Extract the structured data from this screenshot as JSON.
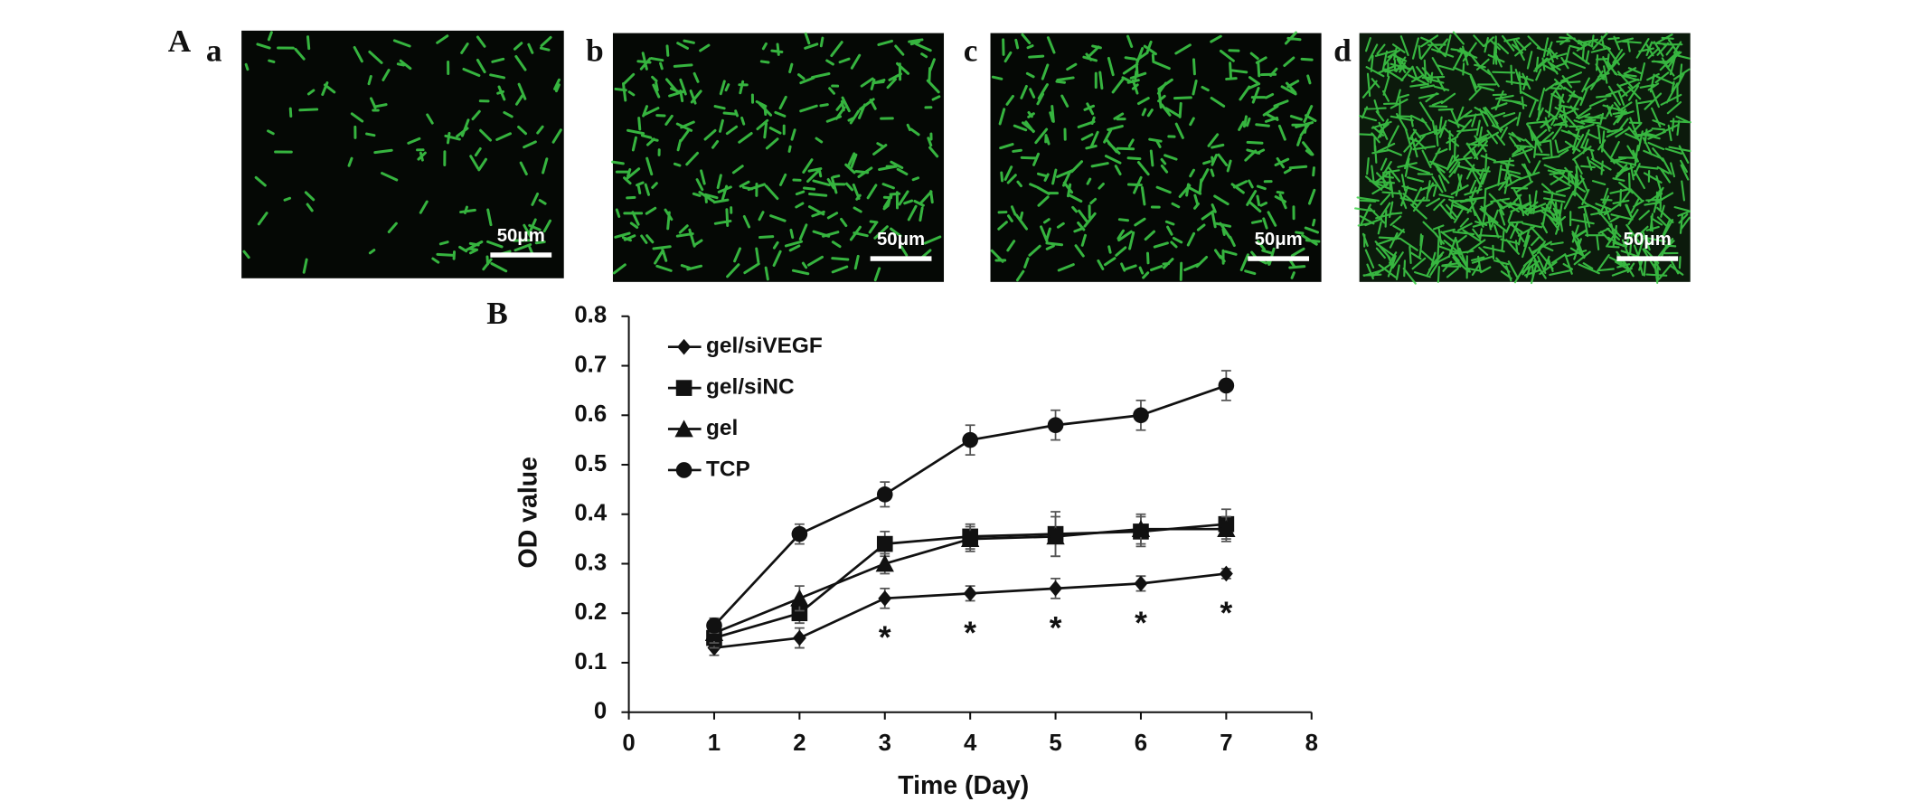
{
  "figure_label_A": "A",
  "images": [
    {
      "label": "a",
      "scale_bar": "50μm"
    },
    {
      "label": "b",
      "scale_bar": "50μm"
    },
    {
      "label": "c",
      "scale_bar": "50μm"
    },
    {
      "label": "d",
      "scale_bar": "50μm"
    }
  ],
  "figure_label_B": "B",
  "chart_data": {
    "type": "line",
    "x_label": "Time (Day)",
    "y_label": "OD value",
    "xlim": [
      0,
      8
    ],
    "xticks": [
      0,
      1,
      2,
      3,
      4,
      5,
      6,
      7,
      8
    ],
    "ylim": [
      0,
      0.8
    ],
    "yticks": [
      0,
      0.1,
      0.2,
      0.3,
      0.4,
      0.5,
      0.6,
      0.7,
      0.8
    ],
    "x": [
      1,
      2,
      3,
      4,
      5,
      6,
      7
    ],
    "legend": "upper left",
    "series": [
      {
        "name": "gel/siVEGF",
        "color": "#111111",
        "marker": "diamond",
        "values": [
          0.13,
          0.15,
          0.23,
          0.24,
          0.25,
          0.26,
          0.28
        ],
        "errors": [
          0.015,
          0.02,
          0.02,
          0.015,
          0.02,
          0.015,
          0.01
        ]
      },
      {
        "name": "gel/siNC",
        "color": "#111111",
        "marker": "square",
        "values": [
          0.15,
          0.2,
          0.34,
          0.355,
          0.36,
          0.365,
          0.38
        ],
        "errors": [
          0.02,
          0.02,
          0.025,
          0.025,
          0.045,
          0.03,
          0.03
        ]
      },
      {
        "name": "gel",
        "color": "#111111",
        "marker": "triangle",
        "values": [
          0.16,
          0.23,
          0.3,
          0.35,
          0.355,
          0.37,
          0.37
        ],
        "errors": [
          0.02,
          0.025,
          0.02,
          0.025,
          0.04,
          0.03,
          0.025
        ]
      },
      {
        "name": "TCP",
        "color": "#111111",
        "marker": "circle",
        "values": [
          0.175,
          0.36,
          0.44,
          0.55,
          0.58,
          0.6,
          0.66
        ],
        "errors": [
          0.015,
          0.02,
          0.025,
          0.03,
          0.03,
          0.03,
          0.03
        ]
      }
    ],
    "annotations": [
      {
        "text": "*",
        "x": 3
      },
      {
        "text": "*",
        "x": 4
      },
      {
        "text": "*",
        "x": 5
      },
      {
        "text": "*",
        "x": 6
      },
      {
        "text": "*",
        "x": 7
      }
    ]
  }
}
